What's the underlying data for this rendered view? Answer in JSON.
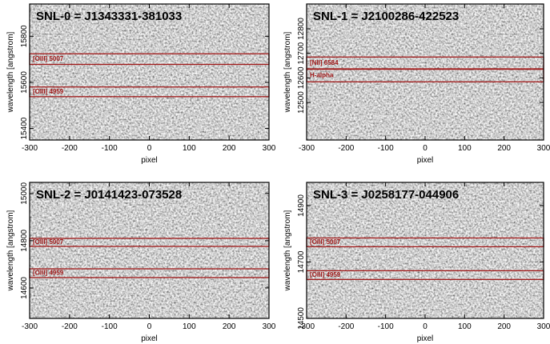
{
  "chart_data": [
    {
      "type": "image",
      "title": "SNL-0 = J1343331-381033",
      "x_label": "pixel",
      "y_label": "wavelength [angstrom]",
      "xlim": [
        -300,
        300
      ],
      "xticks": [
        -300,
        -200,
        -100,
        0,
        100,
        200,
        300
      ],
      "ylim": [
        15350,
        15940
      ],
      "yticks": [
        15400,
        15600,
        15800
      ],
      "color": "#a01818",
      "bands": [
        {
          "label": "[OIII] 5007",
          "ylim": [
            15678,
            15724
          ]
        },
        {
          "label": "[OIII] 4959",
          "ylim": [
            15538,
            15580
          ]
        }
      ]
    },
    {
      "type": "image",
      "title": "SNL-1 = J2100286-422523",
      "x_label": "pixel",
      "y_label": "wavelength [angstrom]",
      "xlim": [
        -300,
        300
      ],
      "xticks": [
        -300,
        -200,
        -100,
        0,
        100,
        200,
        300
      ],
      "ylim": [
        12347,
        12901
      ],
      "yticks": [
        12500,
        12600,
        12700,
        12800
      ],
      "color": "#a01818",
      "bands": [
        {
          "label": "[NII] 6584",
          "ylim": [
            12637,
            12685
          ]
        },
        {
          "label": "H-alpha",
          "ylim": [
            12584,
            12635
          ]
        }
      ]
    },
    {
      "type": "image",
      "title": "SNL-2 = J0141423-073528",
      "x_label": "pixel",
      "y_label": "wavelength [angstrom]",
      "xlim": [
        -300,
        300
      ],
      "xticks": [
        -300,
        -200,
        -100,
        0,
        100,
        200,
        300
      ],
      "ylim": [
        14471,
        15047
      ],
      "yticks": [
        14600,
        14800,
        15000
      ],
      "color": "#a01818",
      "bands": [
        {
          "label": "[OIII] 5007",
          "ylim": [
            14776,
            14810
          ]
        },
        {
          "label": "[OIII] 4959",
          "ylim": [
            14644,
            14681
          ]
        }
      ]
    },
    {
      "type": "image",
      "title": "SNL-3 = J0258177-044906",
      "x_label": "pixel",
      "y_label": "wavelength [angstrom]",
      "xlim": [
        -300,
        300
      ],
      "xticks": [
        -300,
        -200,
        -100,
        0,
        100,
        200,
        300
      ],
      "ylim": [
        14500,
        14982
      ],
      "yticks": [
        14500,
        14700,
        14900
      ],
      "color": "#a01818",
      "bands": [
        {
          "label": "[OIII] 5007",
          "ylim": [
            14754,
            14785
          ]
        },
        {
          "label": "[OIII] 4959",
          "ylim": [
            14638,
            14669
          ]
        }
      ]
    }
  ]
}
